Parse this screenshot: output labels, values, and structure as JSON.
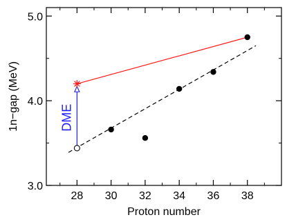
{
  "chart_data": {
    "type": "scatter",
    "title": "",
    "xlabel": "Proton number",
    "ylabel": "1n−gap (MeV)",
    "xlim": [
      26.2,
      40.0
    ],
    "ylim": [
      3.0,
      5.1
    ],
    "x_ticks": [
      28,
      30,
      32,
      34,
      36,
      38
    ],
    "x_minor_ticks": [
      27,
      29,
      31,
      33,
      35,
      37,
      39
    ],
    "y_ticks": [
      {
        "value": 3.0,
        "label": "3.0"
      },
      {
        "value": 4.0,
        "label": "4.0"
      },
      {
        "value": 5.0,
        "label": "5.0"
      }
    ],
    "y_minor_ticks": [
      3.5,
      4.5
    ],
    "grid": false,
    "series": [
      {
        "kind": "filled-points",
        "points": [
          {
            "x": 30,
            "y": 3.66
          },
          {
            "x": 32,
            "y": 3.56
          },
          {
            "x": 34,
            "y": 4.14
          },
          {
            "x": 36,
            "y": 4.34
          },
          {
            "x": 38,
            "y": 4.75
          }
        ]
      },
      {
        "kind": "open-point",
        "points": [
          {
            "x": 28,
            "y": 3.44
          }
        ]
      },
      {
        "kind": "dashed-fit",
        "points": [
          {
            "x": 27.5,
            "y": 3.39
          },
          {
            "x": 38.5,
            "y": 4.65
          }
        ]
      },
      {
        "kind": "red-line",
        "points": [
          {
            "x": 28,
            "y": 4.2
          },
          {
            "x": 38,
            "y": 4.75
          }
        ]
      },
      {
        "kind": "star-point",
        "points": [
          {
            "x": 28,
            "y": 4.2
          }
        ]
      }
    ],
    "annotations": [
      {
        "kind": "arrow",
        "from": {
          "x": 28,
          "y": 3.46
        },
        "to": {
          "x": 28,
          "y": 4.17
        },
        "color": "#1a1aff"
      },
      {
        "kind": "label",
        "text": "DME",
        "x": 27.65,
        "y": 3.8,
        "color": "#1a1aff"
      }
    ],
    "colors": {
      "axis": "#000000",
      "points": "#000000",
      "fit": "#000000",
      "red_line": "#ff1a1a",
      "arrow": "#1a1aff"
    }
  }
}
